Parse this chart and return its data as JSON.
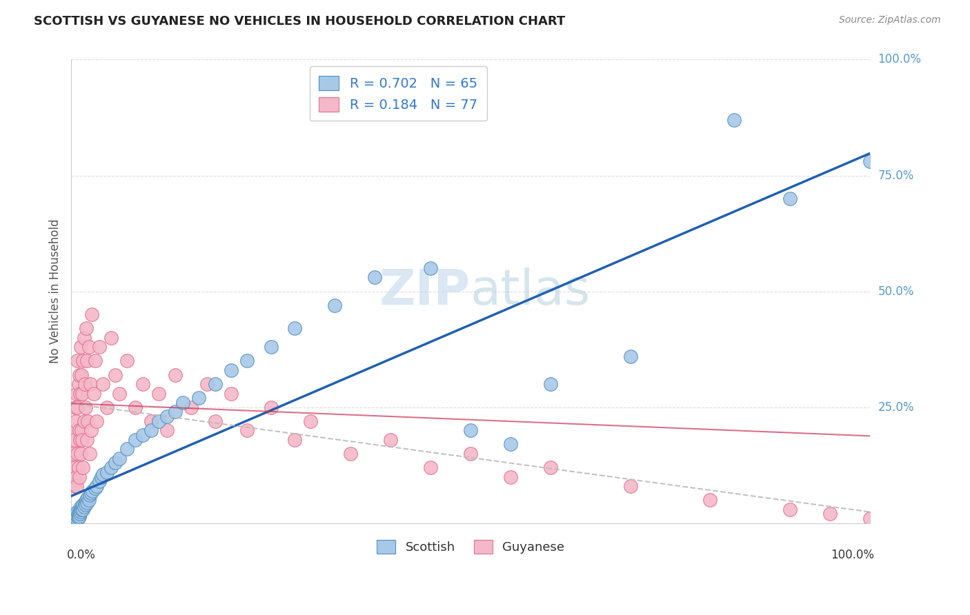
{
  "title": "SCOTTISH VS GUYANESE NO VEHICLES IN HOUSEHOLD CORRELATION CHART",
  "source_text": "Source: ZipAtlas.com",
  "ylabel": "No Vehicles in Household",
  "xlim": [
    0.0,
    100.0
  ],
  "ylim": [
    0.0,
    100.0
  ],
  "legend_blue_r": "R = 0.702",
  "legend_blue_n": "N = 65",
  "legend_pink_r": "R = 0.184",
  "legend_pink_n": "N = 77",
  "blue_scatter_color": "#a8c8e8",
  "blue_edge_color": "#5090c0",
  "pink_scatter_color": "#f5b8c8",
  "pink_edge_color": "#e07090",
  "blue_line_color": "#2060b0",
  "pink_line_color": "#cc3355",
  "grey_dash_color": "#bbbbbb",
  "watermark_color": "#d0dff0",
  "grid_color": "#dddddd",
  "title_color": "#222222",
  "source_color": "#888888",
  "right_tick_color": "#5599cc",
  "scottish_x": [
    0.3,
    0.4,
    0.5,
    0.5,
    0.6,
    0.6,
    0.7,
    0.7,
    0.8,
    0.8,
    0.9,
    0.9,
    1.0,
    1.0,
    1.1,
    1.1,
    1.2,
    1.2,
    1.3,
    1.4,
    1.5,
    1.5,
    1.6,
    1.7,
    1.8,
    1.9,
    2.0,
    2.1,
    2.2,
    2.3,
    2.5,
    2.7,
    3.0,
    3.2,
    3.5,
    3.8,
    4.0,
    4.5,
    5.0,
    5.5,
    6.0,
    7.0,
    8.0,
    9.0,
    10.0,
    11.0,
    12.0,
    13.0,
    14.0,
    16.0,
    18.0,
    20.0,
    22.0,
    25.0,
    28.0,
    33.0,
    38.0,
    45.0,
    50.0,
    55.0,
    60.0,
    70.0,
    83.0,
    90.0,
    100.0
  ],
  "scottish_y": [
    0.5,
    0.8,
    1.0,
    1.5,
    0.8,
    1.2,
    1.0,
    2.0,
    1.5,
    2.5,
    1.2,
    2.0,
    1.5,
    2.5,
    2.0,
    3.0,
    2.5,
    3.5,
    3.0,
    3.5,
    3.0,
    4.0,
    3.5,
    4.5,
    4.0,
    5.0,
    4.5,
    5.5,
    5.0,
    6.0,
    6.5,
    7.0,
    7.5,
    8.0,
    9.0,
    10.0,
    10.5,
    11.0,
    12.0,
    13.0,
    14.0,
    16.0,
    18.0,
    19.0,
    20.0,
    22.0,
    23.0,
    24.0,
    26.0,
    27.0,
    30.0,
    33.0,
    35.0,
    38.0,
    42.0,
    47.0,
    53.0,
    55.0,
    20.0,
    17.0,
    30.0,
    36.0,
    87.0,
    70.0,
    78.0
  ],
  "guyanese_x": [
    0.2,
    0.3,
    0.3,
    0.4,
    0.4,
    0.5,
    0.5,
    0.6,
    0.6,
    0.7,
    0.7,
    0.8,
    0.8,
    0.8,
    0.9,
    0.9,
    1.0,
    1.0,
    1.0,
    1.1,
    1.1,
    1.2,
    1.2,
    1.3,
    1.3,
    1.4,
    1.4,
    1.5,
    1.5,
    1.6,
    1.6,
    1.7,
    1.8,
    1.9,
    2.0,
    2.0,
    2.1,
    2.2,
    2.3,
    2.4,
    2.5,
    2.6,
    2.8,
    3.0,
    3.2,
    3.5,
    4.0,
    4.5,
    5.0,
    5.5,
    6.0,
    7.0,
    8.0,
    9.0,
    10.0,
    11.0,
    12.0,
    13.0,
    15.0,
    17.0,
    18.0,
    20.0,
    22.0,
    25.0,
    28.0,
    30.0,
    35.0,
    40.0,
    45.0,
    50.0,
    55.0,
    60.0,
    70.0,
    80.0,
    90.0,
    95.0,
    100.0
  ],
  "guyanese_y": [
    15.0,
    10.0,
    20.0,
    8.0,
    18.0,
    12.0,
    25.0,
    10.0,
    22.0,
    8.0,
    28.0,
    15.0,
    25.0,
    35.0,
    12.0,
    30.0,
    10.0,
    20.0,
    32.0,
    18.0,
    28.0,
    15.0,
    38.0,
    20.0,
    32.0,
    18.0,
    28.0,
    12.0,
    35.0,
    22.0,
    40.0,
    30.0,
    25.0,
    42.0,
    18.0,
    35.0,
    22.0,
    38.0,
    15.0,
    30.0,
    20.0,
    45.0,
    28.0,
    35.0,
    22.0,
    38.0,
    30.0,
    25.0,
    40.0,
    32.0,
    28.0,
    35.0,
    25.0,
    30.0,
    22.0,
    28.0,
    20.0,
    32.0,
    25.0,
    30.0,
    22.0,
    28.0,
    20.0,
    25.0,
    18.0,
    22.0,
    15.0,
    18.0,
    12.0,
    15.0,
    10.0,
    12.0,
    8.0,
    5.0,
    3.0,
    2.0,
    1.0
  ]
}
